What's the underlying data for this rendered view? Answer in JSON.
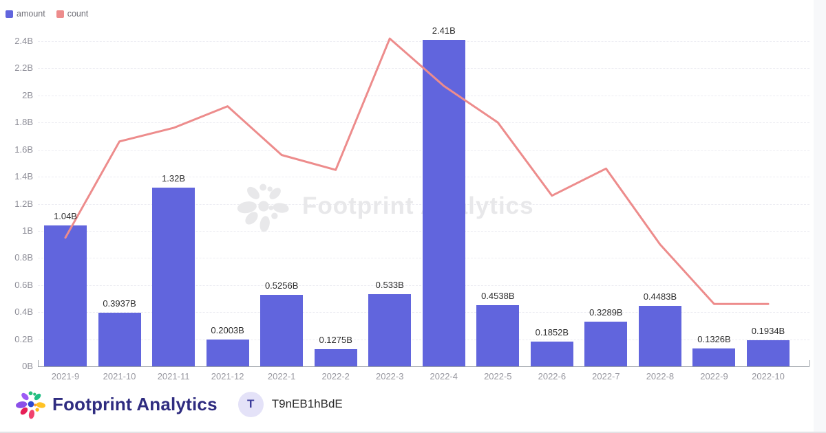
{
  "legend": {
    "items": [
      {
        "label": "amount",
        "color": "#6165dd"
      },
      {
        "label": "count",
        "color": "#ed8c8c"
      }
    ]
  },
  "watermark": {
    "text": "Footprint Analytics"
  },
  "footer": {
    "brand": "Footprint Analytics",
    "avatar_letter": "T",
    "user_id": "T9nEB1hBdE"
  },
  "colors": {
    "bar": "#6165dd",
    "line": "#ed8c8c",
    "brand_text": "#2f2c80",
    "axis_text": "#97979f",
    "gridline": "#ececf2",
    "watermark": "#e8e8ea",
    "avatar_bg": "#e4e2f8"
  },
  "chart_data": {
    "type": "bar",
    "subtype": "combo-bar-line",
    "title": "",
    "xlabel": "",
    "ylabel": "",
    "categories": [
      "2021-9",
      "2021-10",
      "2021-11",
      "2021-12",
      "2022-1",
      "2022-2",
      "2022-3",
      "2022-4",
      "2022-5",
      "2022-6",
      "2022-7",
      "2022-8",
      "2022-9",
      "2022-10"
    ],
    "series": [
      {
        "name": "amount",
        "type": "bar",
        "color": "#6165dd",
        "values_B": [
          1.04,
          0.3937,
          1.32,
          0.2003,
          0.5256,
          0.1275,
          0.533,
          2.41,
          0.4538,
          0.1852,
          0.3289,
          0.4483,
          0.1326,
          0.1934
        ],
        "labels": [
          "1.04B",
          "0.3937B",
          "1.32B",
          "0.2003B",
          "0.5256B",
          "0.1275B",
          "0.533B",
          "2.41B",
          "0.4538B",
          "0.1852B",
          "0.3289B",
          "0.4483B",
          "0.1326B",
          "0.1934B"
        ]
      },
      {
        "name": "count",
        "type": "line",
        "color": "#ed8c8c",
        "values_left_axis_scale_B": [
          0.95,
          1.66,
          1.76,
          1.92,
          1.56,
          1.45,
          2.42,
          2.07,
          1.8,
          1.26,
          1.46,
          0.9,
          0.46,
          0.46
        ]
      }
    ],
    "y_ticks": [
      "0B",
      "0.2B",
      "0.4B",
      "0.6B",
      "0.8B",
      "1B",
      "1.2B",
      "1.4B",
      "1.6B",
      "1.8B",
      "2B",
      "2.2B",
      "2.4B"
    ],
    "ylim": [
      0,
      2.4
    ],
    "grid": "horizontal-dashed",
    "legend_position": "top-left"
  }
}
